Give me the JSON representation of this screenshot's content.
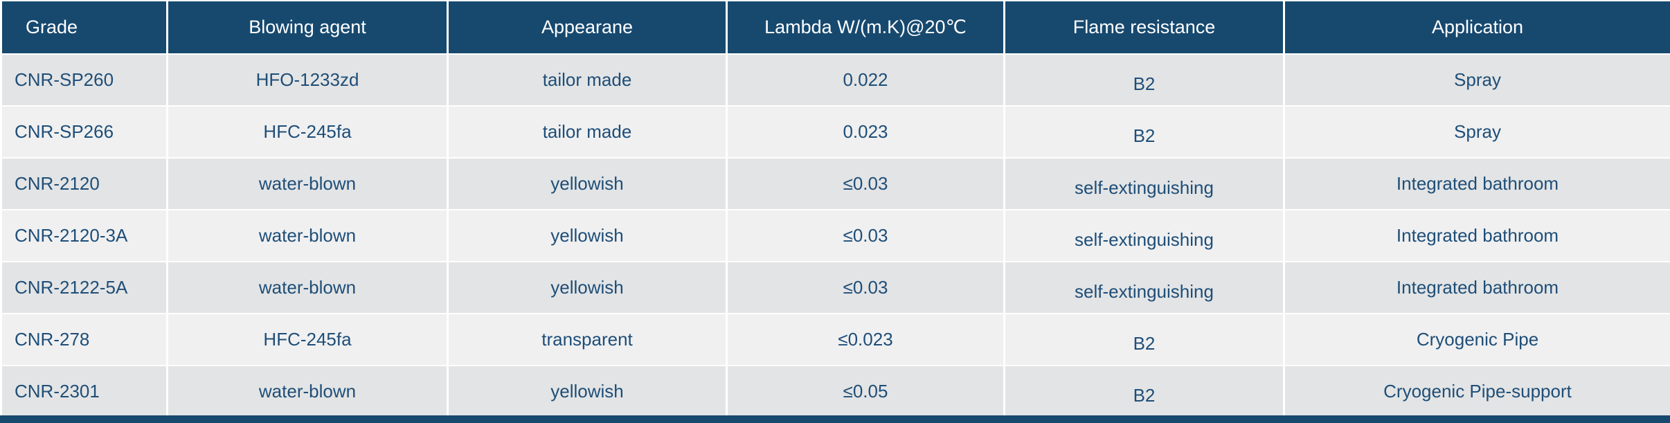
{
  "chart_data": {
    "type": "table",
    "columns": [
      "Grade",
      "Blowing agent",
      "Appearane",
      "Lambda W/(m.K)@20℃",
      "Flame resistance",
      "Application"
    ],
    "rows": [
      [
        "CNR-SP260",
        "HFO-1233zd",
        "tailor made",
        "0.022",
        "B2",
        "Spray"
      ],
      [
        "CNR-SP266",
        "HFC-245fa",
        "tailor made",
        "0.023",
        "B2",
        "Spray"
      ],
      [
        "CNR-2120",
        "water-blown",
        "yellowish",
        "≤0.03",
        "self-extinguishing",
        "Integrated bathroom"
      ],
      [
        "CNR-2120-3A",
        "water-blown",
        "yellowish",
        "≤0.03",
        "self-extinguishing",
        "Integrated bathroom"
      ],
      [
        "CNR-2122-5A",
        "water-blown",
        "yellowish",
        "≤0.03",
        "self-extinguishing",
        "Integrated bathroom"
      ],
      [
        "CNR-278",
        "HFC-245fa",
        "transparent",
        "≤0.023",
        "B2",
        "Cryogenic Pipe"
      ],
      [
        "CNR-2301",
        "water-blown",
        "yellowish",
        "≤0.05",
        "B2",
        "Cryogenic Pipe-support"
      ]
    ],
    "title": "",
    "legend": null,
    "grid": "white separators between cells"
  },
  "colors": {
    "header_bg": "#17496F",
    "header_text": "#FFFFFF",
    "row_odd": "#E3E4E5",
    "row_even": "#F0F0F1",
    "cell_text": "#1E4E78",
    "separator": "#FFFFFF"
  }
}
